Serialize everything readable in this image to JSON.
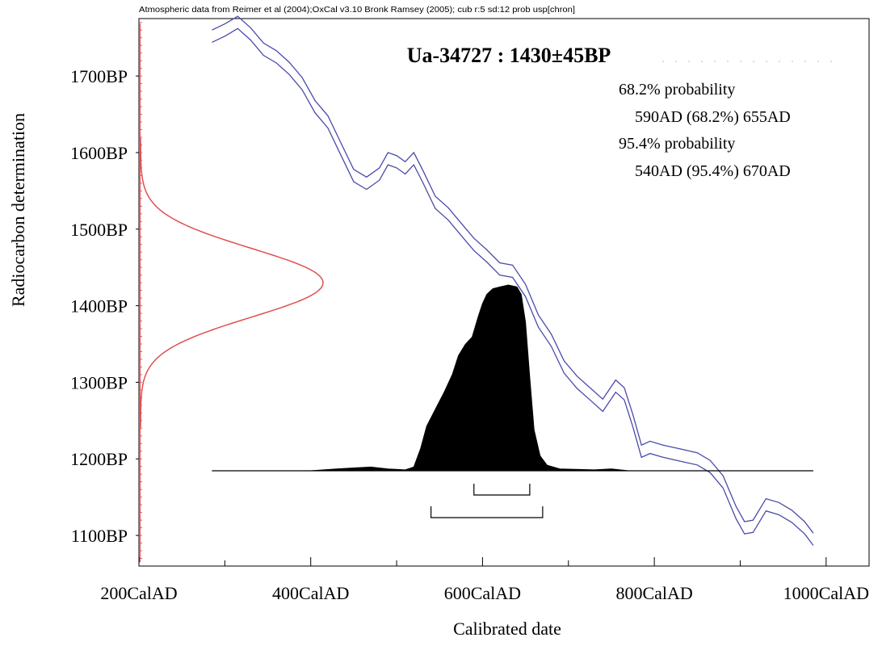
{
  "header_note": "Atmospheric data from Reimer et al (2004);OxCal v3.10 Bronk Ramsey (2005); cub r:5 sd:12 prob usp[chron]",
  "chart_data": {
    "type": "area",
    "title": "Ua-34727 : 1430±45BP",
    "xlabel": "Calibrated date",
    "ylabel": "Radiocarbon determination",
    "x_ticks": [
      "200CalAD",
      "400CalAD",
      "600CalAD",
      "800CalAD",
      "1000CalAD"
    ],
    "y_ticks": [
      "1700BP",
      "1600BP",
      "1500BP",
      "1400BP",
      "1300BP",
      "1200BP",
      "1100BP"
    ],
    "xlim": [
      200,
      1050
    ],
    "ylim_bp": [
      1060,
      1775
    ],
    "measurement": {
      "mean_bp": 1430,
      "sd_bp": 45,
      "color": "#e05050"
    },
    "calibration_curve": {
      "color": "#4a4aaa",
      "x": [
        285,
        300,
        315,
        330,
        345,
        360,
        375,
        390,
        405,
        420,
        435,
        450,
        465,
        480,
        490,
        500,
        510,
        520,
        530,
        545,
        560,
        575,
        590,
        605,
        620,
        635,
        650,
        665,
        680,
        695,
        710,
        725,
        740,
        755,
        765,
        775,
        785,
        795,
        810,
        830,
        850,
        865,
        880,
        895,
        905,
        915,
        930,
        945,
        960,
        975,
        985
      ],
      "y": [
        1752,
        1760,
        1770,
        1755,
        1735,
        1725,
        1710,
        1690,
        1660,
        1640,
        1605,
        1570,
        1560,
        1572,
        1592,
        1588,
        1580,
        1592,
        1570,
        1535,
        1520,
        1500,
        1480,
        1465,
        1448,
        1445,
        1420,
        1380,
        1355,
        1320,
        1300,
        1285,
        1270,
        1295,
        1285,
        1250,
        1210,
        1215,
        1210,
        1205,
        1200,
        1190,
        1170,
        1130,
        1110,
        1112,
        1140,
        1135,
        1125,
        1110,
        1095
      ],
      "band_bp": 8
    },
    "probability": {
      "x": [
        285,
        400,
        430,
        450,
        470,
        490,
        510,
        520,
        528,
        535,
        545,
        555,
        565,
        572,
        580,
        588,
        595,
        600,
        605,
        612,
        620,
        630,
        640,
        645,
        650,
        655,
        660,
        667,
        675,
        690,
        730,
        750,
        760,
        770,
        985
      ],
      "p": [
        0,
        0,
        0.01,
        0.015,
        0.02,
        0.01,
        0.005,
        0.02,
        0.12,
        0.24,
        0.33,
        0.42,
        0.52,
        0.62,
        0.68,
        0.72,
        0.83,
        0.9,
        0.95,
        0.98,
        0.99,
        1.0,
        0.99,
        0.95,
        0.8,
        0.5,
        0.22,
        0.08,
        0.03,
        0.01,
        0.005,
        0.01,
        0.005,
        0,
        0
      ]
    },
    "ranges": [
      {
        "label": "68.2% probability",
        "range_text": "590AD (68.2%) 655AD",
        "from": 590,
        "to": 655
      },
      {
        "label": "95.4% probability",
        "range_text": "540AD (95.4%) 670AD",
        "from": 540,
        "to": 670
      }
    ]
  }
}
